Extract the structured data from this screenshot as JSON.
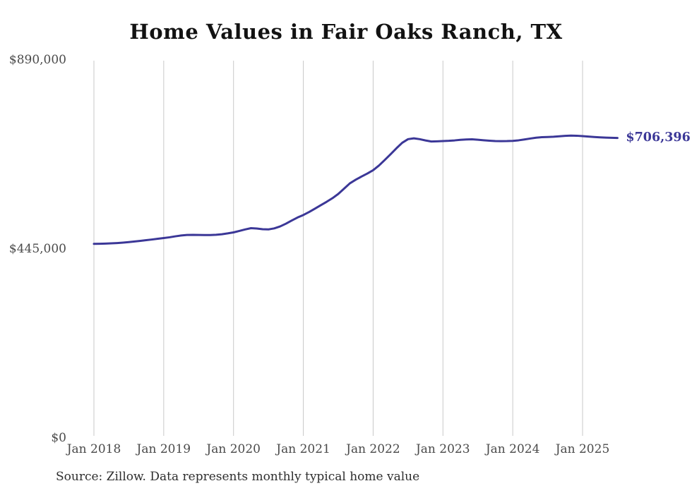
{
  "chart": {
    "title": "Home Values in Fair Oaks Ranch, TX",
    "end_label": "$706,396",
    "source_note": "Source: Zillow. Data represents monthly typical home value",
    "colors": {
      "line": "#3b3797",
      "grid": "#c9c9c9",
      "title_text": "#121212",
      "axis_text": "#4a4a4a",
      "source_text": "#2e2e2e",
      "end_label_text": "#3b3797",
      "background": "#ffffff"
    }
  },
  "chart_data": {
    "type": "line",
    "title": "Home Values in Fair Oaks Ranch, TX",
    "xlabel": "",
    "ylabel": "",
    "ylim": [
      0,
      890000
    ],
    "grid": "vertical-only",
    "legend": "none",
    "start_month": "Jan 2018",
    "end_month": "Jul 2025",
    "final_value": 706396,
    "x_ticks": [
      "Jan 2018",
      "Jan 2019",
      "Jan 2020",
      "Jan 2021",
      "Jan 2022",
      "Jan 2023",
      "Jan 2024",
      "Jan 2025"
    ],
    "y_ticks": [
      {
        "label": "$0",
        "value": 0
      },
      {
        "label": "$445,000",
        "value": 445000
      },
      {
        "label": "$890,000",
        "value": 890000
      }
    ],
    "series": [
      {
        "name": "Monthly typical home value",
        "values": [
          457000,
          457200,
          457600,
          458200,
          459000,
          460000,
          461200,
          462600,
          464100,
          465700,
          467300,
          469000,
          470700,
          472500,
          474800,
          476800,
          478000,
          478300,
          478000,
          477700,
          477800,
          478400,
          479700,
          481700,
          484000,
          487500,
          491000,
          494000,
          493200,
          491500,
          491000,
          493500,
          498000,
          504500,
          512000,
          519000,
          525000,
          532000,
          540000,
          548000,
          556000,
          564500,
          574500,
          587000,
          599500,
          608000,
          615500,
          622500,
          630500,
          641500,
          654500,
          668000,
          682000,
          695000,
          703500,
          705500,
          703500,
          700500,
          698000,
          698500,
          699000,
          699600,
          700600,
          702000,
          702800,
          703200,
          702200,
          700900,
          699900,
          699100,
          698900,
          699000,
          699500,
          700800,
          702800,
          705000,
          707000,
          708200,
          708700,
          709200,
          710200,
          711300,
          712000,
          711600,
          710600,
          709600,
          708600,
          707800,
          707200,
          706700,
          706396
        ]
      }
    ]
  }
}
